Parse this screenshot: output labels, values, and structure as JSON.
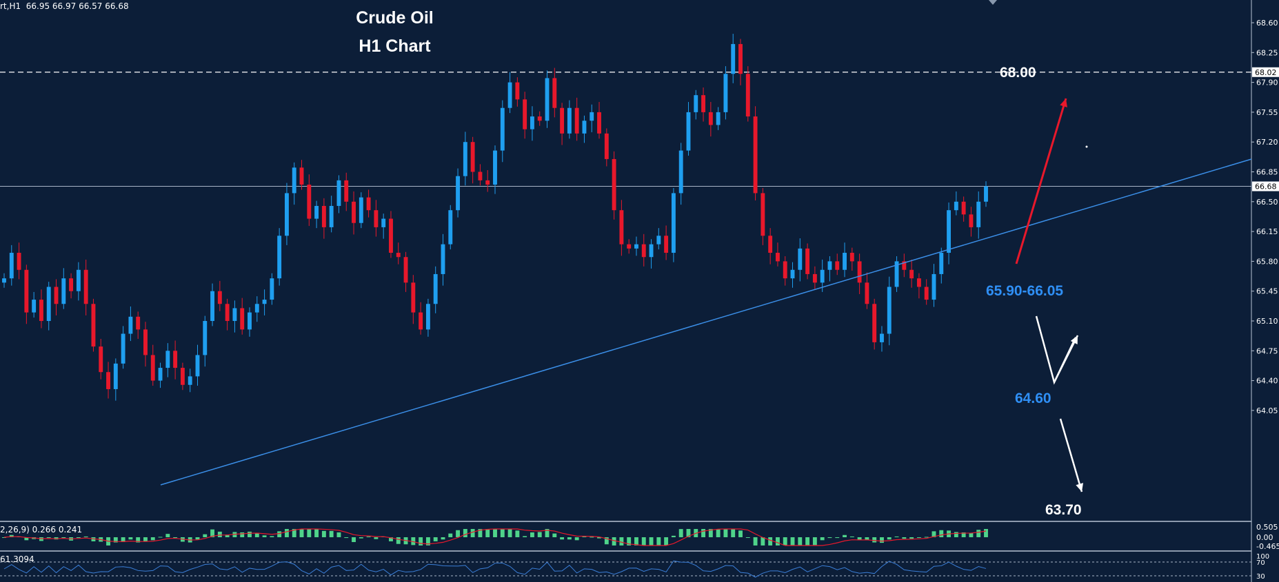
{
  "header": {
    "text": "rt,H1  66.95 66.97 66.57 66.68"
  },
  "title": {
    "line1": "Crude Oil",
    "line2": "H1 Chart"
  },
  "annotations": {
    "level_68": "68.00",
    "zone": "65.90-66.05",
    "level_6460": "64.60",
    "level_6370": "63.70"
  },
  "colors": {
    "background": "#0c1e38",
    "bull": "#1f9ff0",
    "bear": "#e8182b",
    "trendline": "#3b8fe8",
    "up_arrow": "#e8182b",
    "level_text_blue": "#2f8ff5",
    "macd_bar": "#4fd38a",
    "macd_signal": "#e8182b",
    "rsi_line": "#3b7fd8"
  },
  "macd": {
    "label": "2,26,9) 0.266 0.241",
    "axis": [
      "0.505",
      "0.00",
      "-0.465"
    ]
  },
  "rsi": {
    "label": "61.3094",
    "axis": [
      "100",
      "70",
      "30"
    ]
  },
  "chart_data": {
    "type": "candlestick",
    "timeframe": "H1",
    "ylim": [
      63.9,
      68.7
    ],
    "y_ticks": [
      "68.60",
      "68.25",
      "67.90",
      "67.55",
      "67.20",
      "66.85",
      "66.50",
      "66.15",
      "65.80",
      "65.45",
      "65.10",
      "64.75",
      "64.40",
      "64.05"
    ],
    "current_price": "66.68",
    "dashed_level": "68.02",
    "points": [
      {
        "c": 65.6
      },
      {
        "c": 65.9
      },
      {
        "c": 65.7
      },
      {
        "c": 65.2
      },
      {
        "c": 65.35
      },
      {
        "c": 65.1
      },
      {
        "c": 65.5
      },
      {
        "c": 65.3
      },
      {
        "c": 65.6
      },
      {
        "c": 65.45
      },
      {
        "c": 65.7
      },
      {
        "c": 65.3
      },
      {
        "c": 64.8
      },
      {
        "c": 64.5
      },
      {
        "c": 64.3
      },
      {
        "c": 64.6
      },
      {
        "c": 64.95
      },
      {
        "c": 65.15
      },
      {
        "c": 65.0
      },
      {
        "c": 64.7
      },
      {
        "c": 64.4
      },
      {
        "c": 64.55
      },
      {
        "c": 64.75
      },
      {
        "c": 64.55
      },
      {
        "c": 64.35
      },
      {
        "c": 64.45
      },
      {
        "c": 64.7
      },
      {
        "c": 65.1
      },
      {
        "c": 65.45
      },
      {
        "c": 65.3
      },
      {
        "c": 65.1
      },
      {
        "c": 65.25
      },
      {
        "c": 65.0
      },
      {
        "c": 65.2
      },
      {
        "c": 65.3
      },
      {
        "c": 65.35
      },
      {
        "c": 65.6
      },
      {
        "c": 66.1
      },
      {
        "c": 66.6
      },
      {
        "c": 66.9
      },
      {
        "c": 66.7
      },
      {
        "c": 66.3
      },
      {
        "c": 66.45
      },
      {
        "c": 66.2
      },
      {
        "c": 66.45
      },
      {
        "c": 66.75
      },
      {
        "c": 66.5
      },
      {
        "c": 66.25
      },
      {
        "c": 66.55
      },
      {
        "c": 66.4
      },
      {
        "c": 66.2
      },
      {
        "c": 66.3
      },
      {
        "c": 65.9
      },
      {
        "c": 65.85
      },
      {
        "c": 65.55
      },
      {
        "c": 65.2
      },
      {
        "c": 65.0
      },
      {
        "c": 65.3
      },
      {
        "c": 65.65
      },
      {
        "c": 66.0
      },
      {
        "c": 66.4
      },
      {
        "c": 66.8
      },
      {
        "c": 67.2
      },
      {
        "c": 66.85
      },
      {
        "c": 66.75
      },
      {
        "c": 66.7
      },
      {
        "c": 67.1
      },
      {
        "c": 67.6
      },
      {
        "c": 67.9
      },
      {
        "c": 67.7
      },
      {
        "c": 67.35
      },
      {
        "c": 67.5
      },
      {
        "c": 67.45
      },
      {
        "c": 67.95
      },
      {
        "c": 67.6
      },
      {
        "c": 67.3
      },
      {
        "c": 67.6
      },
      {
        "c": 67.3
      },
      {
        "c": 67.45
      },
      {
        "c": 67.55
      },
      {
        "c": 67.3
      },
      {
        "c": 67.0
      },
      {
        "c": 66.4
      },
      {
        "c": 66.0
      },
      {
        "c": 65.95
      },
      {
        "c": 66.0
      },
      {
        "c": 65.85
      },
      {
        "c": 66.0
      },
      {
        "c": 66.1
      },
      {
        "c": 65.9
      },
      {
        "c": 66.6
      },
      {
        "c": 67.1
      },
      {
        "c": 67.55
      },
      {
        "c": 67.75
      },
      {
        "c": 67.55
      },
      {
        "c": 67.4
      },
      {
        "c": 67.55
      },
      {
        "c": 68.0
      },
      {
        "c": 68.35
      },
      {
        "c": 68.0
      },
      {
        "c": 67.5
      },
      {
        "c": 66.6
      },
      {
        "c": 66.1
      },
      {
        "c": 65.9
      },
      {
        "c": 65.8
      },
      {
        "c": 65.6
      },
      {
        "c": 65.7
      },
      {
        "c": 65.95
      },
      {
        "c": 65.65
      },
      {
        "c": 65.55
      },
      {
        "c": 65.7
      },
      {
        "c": 65.8
      },
      {
        "c": 65.7
      },
      {
        "c": 65.9
      },
      {
        "c": 65.8
      },
      {
        "c": 65.55
      },
      {
        "c": 65.3
      },
      {
        "c": 64.85
      },
      {
        "c": 64.95
      },
      {
        "c": 65.5
      },
      {
        "c": 65.8
      },
      {
        "c": 65.7
      },
      {
        "c": 65.6
      },
      {
        "c": 65.5
      },
      {
        "c": 65.35
      },
      {
        "c": 65.65
      },
      {
        "c": 65.9
      },
      {
        "c": 66.4
      },
      {
        "c": 66.5
      },
      {
        "c": 66.35
      },
      {
        "c": 66.2
      },
      {
        "c": 66.5
      },
      {
        "c": 66.68
      }
    ]
  }
}
